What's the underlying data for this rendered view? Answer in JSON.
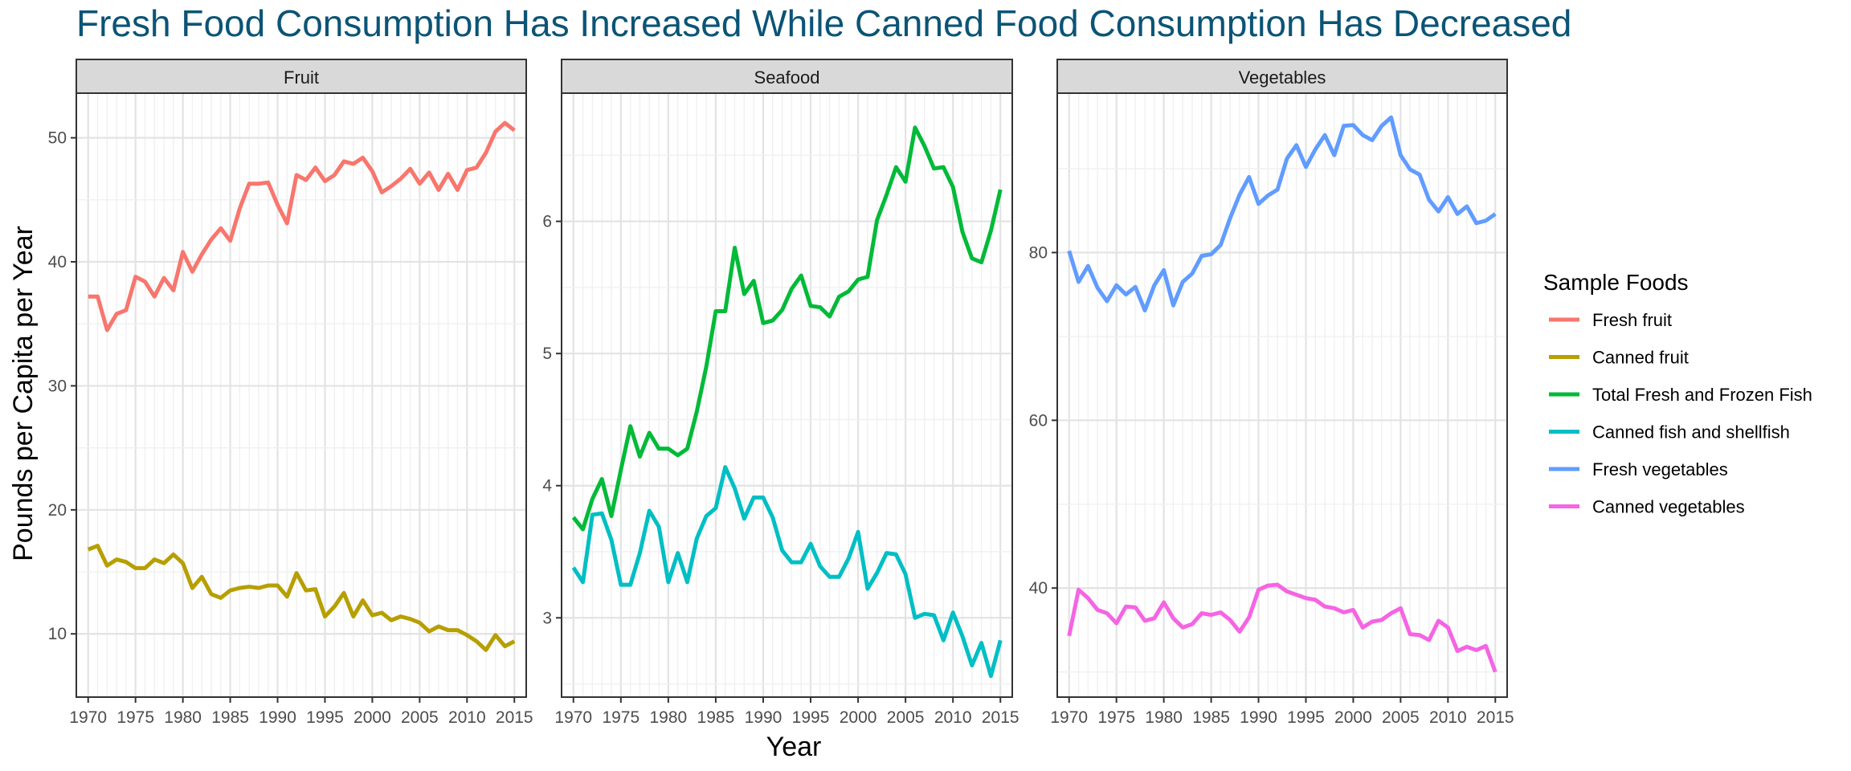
{
  "chart_data": {
    "type": "line",
    "title": "Fresh Food Consumption Has Increased While Canned Food Consumption Has Decreased",
    "xlabel": "Year",
    "ylabel": "Pounds per Capita per Year",
    "grid": true,
    "legend": {
      "title": "Sample Foods",
      "placement": "right",
      "entries": [
        {
          "name": "Fresh fruit",
          "color": "#F8766D"
        },
        {
          "name": "Canned fruit",
          "color": "#B79F00"
        },
        {
          "name": "Total Fresh and Frozen Fish",
          "color": "#00BA38"
        },
        {
          "name": "Canned fish and shellfish",
          "color": "#00BFC4"
        },
        {
          "name": "Fresh vegetables",
          "color": "#619CFF"
        },
        {
          "name": "Canned vegetables",
          "color": "#F564E3"
        }
      ]
    },
    "x": [
      1970,
      1971,
      1972,
      1973,
      1974,
      1975,
      1976,
      1977,
      1978,
      1979,
      1980,
      1981,
      1982,
      1983,
      1984,
      1985,
      1986,
      1987,
      1988,
      1989,
      1990,
      1991,
      1992,
      1993,
      1994,
      1995,
      1996,
      1997,
      1998,
      1999,
      2000,
      2001,
      2002,
      2003,
      2004,
      2005,
      2006,
      2007,
      2008,
      2009,
      2010,
      2011,
      2012,
      2013,
      2014,
      2015
    ],
    "x_ticks": [
      "1970",
      "1975",
      "1980",
      "1985",
      "1990",
      "1995",
      "2000",
      "2005",
      "2010",
      "2015"
    ],
    "xlim": [
      1968.75,
      2016.25
    ],
    "panels": [
      {
        "strip": "Fruit",
        "ylim": [
          4.9,
          53.6
        ],
        "y_ticks": [
          10,
          20,
          30,
          40,
          50
        ],
        "y_tick_labels": [
          "10",
          "20",
          "30",
          "40",
          "50"
        ],
        "series": [
          {
            "name": "Fresh fruit",
            "color": "#F8766D",
            "values": [
              37.2,
              37.2,
              34.5,
              35.8,
              36.1,
              38.8,
              38.4,
              37.2,
              38.7,
              37.7,
              40.8,
              39.2,
              40.6,
              41.8,
              42.7,
              41.7,
              44.3,
              46.3,
              46.3,
              46.4,
              44.6,
              43.1,
              47.0,
              46.6,
              47.6,
              46.5,
              47.0,
              48.1,
              47.9,
              48.4,
              47.3,
              45.6,
              46.1,
              46.7,
              47.5,
              46.3,
              47.2,
              45.8,
              47.1,
              45.8,
              47.4,
              47.6,
              48.8,
              50.5,
              51.2,
              50.6
            ]
          },
          {
            "name": "Canned fruit",
            "color": "#B79F00",
            "values": [
              16.8,
              17.1,
              15.5,
              16.0,
              15.8,
              15.3,
              15.3,
              16.0,
              15.7,
              16.4,
              15.7,
              13.7,
              14.6,
              13.2,
              12.9,
              13.5,
              13.7,
              13.8,
              13.7,
              13.9,
              13.9,
              13.0,
              14.9,
              13.5,
              13.6,
              11.4,
              12.2,
              13.3,
              11.4,
              12.7,
              11.5,
              11.7,
              11.1,
              11.4,
              11.2,
              10.9,
              10.2,
              10.6,
              10.3,
              10.3,
              9.9,
              9.4,
              8.7,
              9.9,
              9.0,
              9.4
            ]
          }
        ]
      },
      {
        "strip": "Seafood",
        "ylim": [
          2.4,
          6.97
        ],
        "y_ticks": [
          3,
          4,
          5,
          6
        ],
        "y_tick_labels": [
          "3",
          "4",
          "5",
          "6"
        ],
        "series": [
          {
            "name": "Total Fresh and Frozen Fish",
            "color": "#00BA38",
            "values": [
              3.76,
              3.67,
              3.9,
              4.05,
              3.77,
              4.12,
              4.45,
              4.22,
              4.4,
              4.28,
              4.28,
              4.23,
              4.28,
              4.56,
              4.9,
              5.32,
              5.32,
              5.8,
              5.45,
              5.55,
              5.23,
              5.25,
              5.33,
              5.49,
              5.59,
              5.36,
              5.35,
              5.28,
              5.43,
              5.47,
              5.56,
              5.58,
              6.01,
              6.2,
              6.41,
              6.3,
              6.71,
              6.57,
              6.4,
              6.41,
              6.26,
              5.92,
              5.72,
              5.69,
              5.93,
              6.24
            ]
          },
          {
            "name": "Canned fish and shellfish",
            "color": "#00BFC4",
            "values": [
              3.38,
              3.27,
              3.78,
              3.79,
              3.59,
              3.25,
              3.25,
              3.49,
              3.81,
              3.69,
              3.27,
              3.49,
              3.27,
              3.6,
              3.77,
              3.83,
              4.14,
              3.98,
              3.75,
              3.91,
              3.91,
              3.76,
              3.51,
              3.42,
              3.42,
              3.56,
              3.39,
              3.31,
              3.31,
              3.45,
              3.65,
              3.22,
              3.34,
              3.49,
              3.48,
              3.33,
              3.0,
              3.03,
              3.02,
              2.83,
              3.04,
              2.86,
              2.64,
              2.81,
              2.56,
              2.83
            ]
          }
        ]
      },
      {
        "strip": "Vegetables",
        "ylim": [
          27.0,
          99.0
        ],
        "y_ticks": [
          40,
          60,
          80
        ],
        "y_tick_labels": [
          "40",
          "60",
          "80"
        ],
        "series": [
          {
            "name": "Fresh vegetables",
            "color": "#619CFF",
            "values": [
              80.2,
              76.5,
              78.4,
              75.8,
              74.2,
              76.1,
              75.0,
              75.9,
              73.1,
              76.1,
              77.9,
              73.7,
              76.5,
              77.5,
              79.6,
              79.8,
              80.9,
              84.1,
              86.9,
              89.0,
              85.8,
              86.8,
              87.5,
              91.2,
              92.8,
              90.2,
              92.3,
              94.0,
              91.6,
              95.1,
              95.2,
              94.0,
              93.4,
              95.1,
              96.1,
              91.6,
              89.9,
              89.3,
              86.3,
              84.9,
              86.6,
              84.6,
              85.5,
              83.5,
              83.8,
              84.6
            ]
          },
          {
            "name": "Canned vegetables",
            "color": "#F564E3",
            "values": [
              34.3,
              39.8,
              38.8,
              37.4,
              37.0,
              35.8,
              37.8,
              37.7,
              36.1,
              36.4,
              38.3,
              36.4,
              35.3,
              35.7,
              37.0,
              36.8,
              37.1,
              36.2,
              34.8,
              36.5,
              39.8,
              40.3,
              40.4,
              39.6,
              39.2,
              38.8,
              38.6,
              37.8,
              37.6,
              37.1,
              37.4,
              35.3,
              36.0,
              36.2,
              37.0,
              37.6,
              34.5,
              34.4,
              33.8,
              36.1,
              35.3,
              32.5,
              33.0,
              32.6,
              33.1,
              30.0
            ]
          }
        ]
      }
    ]
  }
}
